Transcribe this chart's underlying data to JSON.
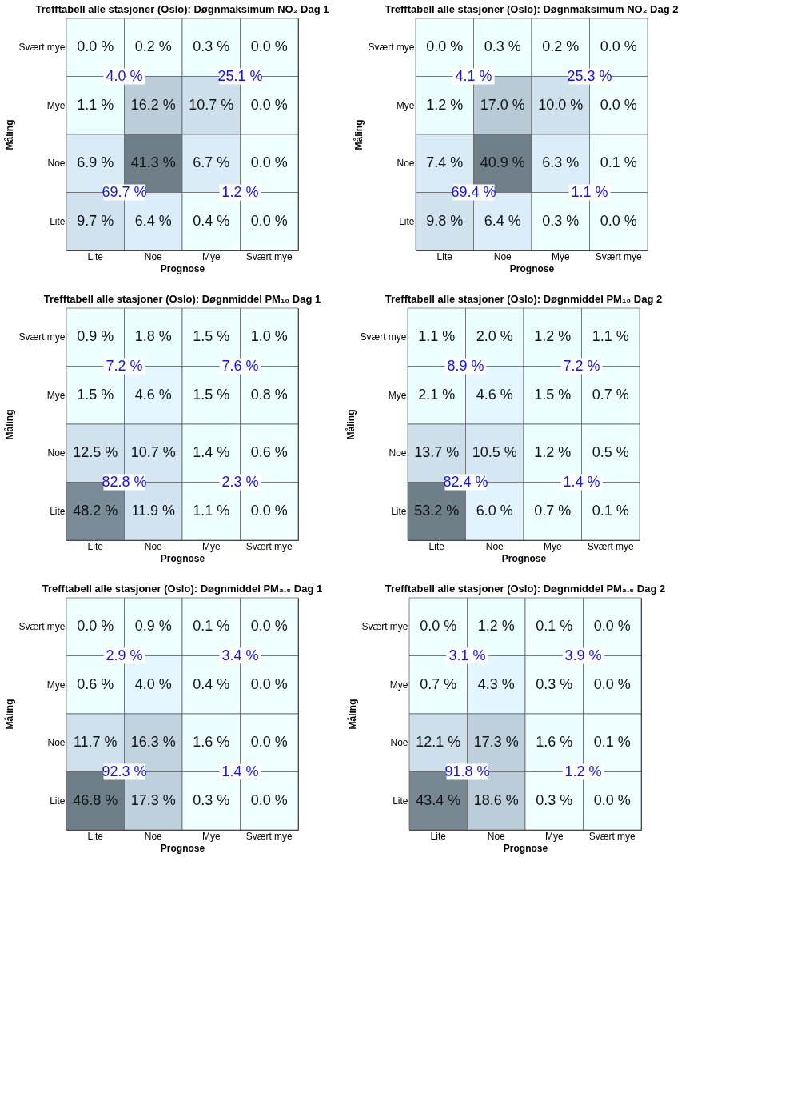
{
  "chart_data": [
    {
      "type": "heatmap",
      "title": "Trefftabell alle stasjoner (Oslo): Døgnmaksimum NO₂ Dag 1",
      "xlabel": "Prognose",
      "ylabel": "Måling",
      "categories": [
        "Lite",
        "Noe",
        "Mye",
        "Svært mye"
      ],
      "y_categories": [
        "Svært mye",
        "Mye",
        "Noe",
        "Lite"
      ],
      "cells": [
        [
          0.0,
          0.2,
          0.3,
          0.0
        ],
        [
          1.1,
          16.2,
          10.7,
          0.0
        ],
        [
          6.9,
          41.3,
          6.7,
          0.0
        ],
        [
          9.7,
          6.4,
          0.4,
          0.0
        ]
      ],
      "cell_labels": [
        [
          "0.0 %",
          "0.2 %",
          "0.3 %",
          "0.0 %"
        ],
        [
          "1.1 %",
          "16.2 %",
          "10.7 %",
          "0.0 %"
        ],
        [
          "6.9 %",
          "41.3 %",
          "6.7 %",
          "0.0 %"
        ],
        [
          "9.7 %",
          "6.4 %",
          "0.4 %",
          "0.0 %"
        ]
      ],
      "annotations": [
        "4.0 %",
        "25.1 %",
        "69.7 %",
        "1.2 %"
      ]
    },
    {
      "type": "heatmap",
      "title": "Trefftabell alle stasjoner (Oslo): Døgnmaksimum NO₂ Dag 2",
      "xlabel": "Prognose",
      "ylabel": "Måling",
      "categories": [
        "Lite",
        "Noe",
        "Mye",
        "Svært mye"
      ],
      "y_categories": [
        "Svært mye",
        "Mye",
        "Noe",
        "Lite"
      ],
      "cells": [
        [
          0.0,
          0.3,
          0.2,
          0.0
        ],
        [
          1.2,
          17.0,
          10.0,
          0.0
        ],
        [
          7.4,
          40.9,
          6.3,
          0.1
        ],
        [
          9.8,
          6.4,
          0.3,
          0.0
        ]
      ],
      "cell_labels": [
        [
          "0.0 %",
          "0.3 %",
          "0.2 %",
          "0.0 %"
        ],
        [
          "1.2 %",
          "17.0 %",
          "10.0 %",
          "0.0 %"
        ],
        [
          "7.4 %",
          "40.9 %",
          "6.3 %",
          "0.1 %"
        ],
        [
          "9.8 %",
          "6.4 %",
          "0.3 %",
          "0.0 %"
        ]
      ],
      "annotations": [
        "4.1 %",
        "25.3 %",
        "69.4 %",
        "1.1 %"
      ]
    },
    {
      "type": "heatmap",
      "title": "Trefftabell alle stasjoner (Oslo): Døgnmiddel PM₁₀ Dag 1",
      "xlabel": "Prognose",
      "ylabel": "Måling",
      "categories": [
        "Lite",
        "Noe",
        "Mye",
        "Svært mye"
      ],
      "y_categories": [
        "Svært mye",
        "Mye",
        "Noe",
        "Lite"
      ],
      "cells": [
        [
          0.9,
          1.8,
          1.5,
          1.0
        ],
        [
          1.5,
          4.6,
          1.5,
          0.8
        ],
        [
          12.5,
          10.7,
          1.4,
          0.6
        ],
        [
          48.2,
          11.9,
          1.1,
          0.0
        ]
      ],
      "cell_labels": [
        [
          "0.9 %",
          "1.8 %",
          "1.5 %",
          "1.0 %"
        ],
        [
          "1.5 %",
          "4.6 %",
          "1.5 %",
          "0.8 %"
        ],
        [
          "12.5 %",
          "10.7 %",
          "1.4 %",
          "0.6 %"
        ],
        [
          "48.2 %",
          "11.9 %",
          "1.1 %",
          "0.0 %"
        ]
      ],
      "annotations": [
        "7.2 %",
        "7.6 %",
        "82.8 %",
        "2.3 %"
      ]
    },
    {
      "type": "heatmap",
      "title": "Trefftabell alle stasjoner (Oslo): Døgnmiddel PM₁₀ Dag 2",
      "xlabel": "Prognose",
      "ylabel": "Måling",
      "categories": [
        "Lite",
        "Noe",
        "Mye",
        "Svært mye"
      ],
      "y_categories": [
        "Svært mye",
        "Mye",
        "Noe",
        "Lite"
      ],
      "cells": [
        [
          1.1,
          2.0,
          1.2,
          1.1
        ],
        [
          2.1,
          4.6,
          1.5,
          0.7
        ],
        [
          13.7,
          10.5,
          1.2,
          0.5
        ],
        [
          53.2,
          6.0,
          0.7,
          0.1
        ]
      ],
      "cell_labels": [
        [
          "1.1 %",
          "2.0 %",
          "1.2 %",
          "1.1 %"
        ],
        [
          "2.1 %",
          "4.6 %",
          "1.5 %",
          "0.7 %"
        ],
        [
          "13.7 %",
          "10.5 %",
          "1.2 %",
          "0.5 %"
        ],
        [
          "53.2 %",
          "6.0 %",
          "0.7 %",
          "0.1 %"
        ]
      ],
      "annotations": [
        "8.9 %",
        "7.2 %",
        "82.4 %",
        "1.4 %"
      ]
    },
    {
      "type": "heatmap",
      "title": "Trefftabell alle stasjoner (Oslo): Døgnmiddel PM₂.₅ Dag 1",
      "xlabel": "Prognose",
      "ylabel": "Måling",
      "categories": [
        "Lite",
        "Noe",
        "Mye",
        "Svært mye"
      ],
      "y_categories": [
        "Svært mye",
        "Mye",
        "Noe",
        "Lite"
      ],
      "cells": [
        [
          0.0,
          0.9,
          0.1,
          0.0
        ],
        [
          0.6,
          4.0,
          0.4,
          0.0
        ],
        [
          11.7,
          16.3,
          1.6,
          0.0
        ],
        [
          46.8,
          17.3,
          0.3,
          0.0
        ]
      ],
      "cell_labels": [
        [
          "0.0 %",
          "0.9 %",
          "0.1 %",
          "0.0 %"
        ],
        [
          "0.6 %",
          "4.0 %",
          "0.4 %",
          "0.0 %"
        ],
        [
          "11.7 %",
          "16.3 %",
          "1.6 %",
          "0.0 %"
        ],
        [
          "46.8 %",
          "17.3 %",
          "0.3 %",
          "0.0 %"
        ]
      ],
      "annotations": [
        "2.9 %",
        "3.4 %",
        "92.3 %",
        "1.4 %"
      ]
    },
    {
      "type": "heatmap",
      "title": "Trefftabell alle stasjoner (Oslo): Døgnmiddel PM₂.₅ Dag 2",
      "xlabel": "Prognose",
      "ylabel": "Måling",
      "categories": [
        "Lite",
        "Noe",
        "Mye",
        "Svært mye"
      ],
      "y_categories": [
        "Svært mye",
        "Mye",
        "Noe",
        "Lite"
      ],
      "cells": [
        [
          0.0,
          1.2,
          0.1,
          0.0
        ],
        [
          0.7,
          4.3,
          0.3,
          0.0
        ],
        [
          12.1,
          17.3,
          1.6,
          0.1
        ],
        [
          43.4,
          18.6,
          0.3,
          0.0
        ]
      ],
      "cell_labels": [
        [
          "0.0 %",
          "1.2 %",
          "0.1 %",
          "0.0 %"
        ],
        [
          "0.7 %",
          "4.3 %",
          "0.3 %",
          "0.0 %"
        ],
        [
          "12.1 %",
          "17.3 %",
          "1.6 %",
          "0.1 %"
        ],
        [
          "43.4 %",
          "18.6 %",
          "0.3 %",
          "0.0 %"
        ]
      ],
      "annotations": [
        "3.1 %",
        "3.9 %",
        "91.8 %",
        "1.2 %"
      ]
    }
  ]
}
